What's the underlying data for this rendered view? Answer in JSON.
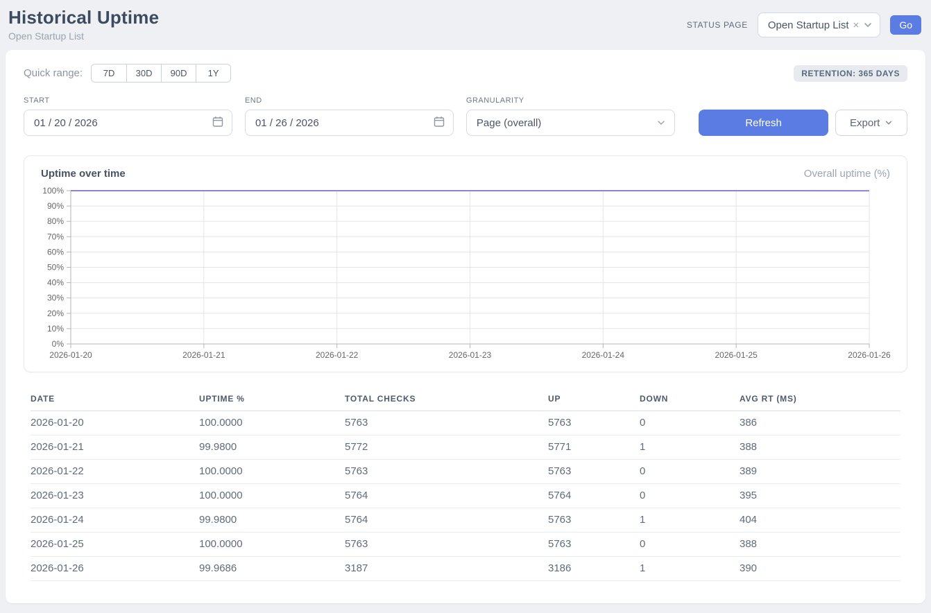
{
  "header": {
    "title": "Historical Uptime",
    "subtitle": "Open Startup List",
    "status_page_label": "STATUS PAGE",
    "status_page_value": "Open Startup List",
    "clear_icon": "×",
    "go_label": "Go"
  },
  "filters": {
    "quick_range_label": "Quick range:",
    "quick_ranges": [
      "7D",
      "30D",
      "90D",
      "1Y"
    ],
    "retention_badge": "RETENTION: 365 DAYS",
    "start_label": "START",
    "start_value": "01 / 20 / 2026",
    "end_label": "END",
    "end_value": "01 / 26 / 2026",
    "granularity_label": "GRANULARITY",
    "granularity_value": "Page (overall)",
    "refresh_label": "Refresh",
    "export_label": "Export"
  },
  "chart": {
    "title": "Uptime over time",
    "legend": "Overall uptime (%)"
  },
  "chart_data": {
    "type": "line",
    "title": "Uptime over time",
    "x": [
      "2026-01-20",
      "2026-01-21",
      "2026-01-22",
      "2026-01-23",
      "2026-01-24",
      "2026-01-25",
      "2026-01-26"
    ],
    "series": [
      {
        "name": "Overall uptime (%)",
        "values": [
          100.0,
          99.98,
          100.0,
          100.0,
          99.98,
          100.0,
          99.9686
        ]
      }
    ],
    "ylim": [
      0,
      100
    ],
    "y_tick_values": [
      0,
      10,
      20,
      30,
      40,
      50,
      60,
      70,
      80,
      90,
      100
    ],
    "y_tick_labels": [
      "0%",
      "10%",
      "20%",
      "30%",
      "40%",
      "50%",
      "60%",
      "70%",
      "80%",
      "90%",
      "100%"
    ],
    "grid": true,
    "legend_position": "top-right",
    "line_color": "#8884d8",
    "grid_color": "#e5e5e5",
    "axis_color": "#b5b5b5",
    "tick_text_color": "#666666"
  },
  "table": {
    "columns": [
      "DATE",
      "UPTIME %",
      "TOTAL CHECKS",
      "UP",
      "DOWN",
      "AVG RT (MS)"
    ],
    "rows": [
      [
        "2026-01-20",
        "100.0000",
        "5763",
        "5763",
        "0",
        "386"
      ],
      [
        "2026-01-21",
        "99.9800",
        "5772",
        "5771",
        "1",
        "388"
      ],
      [
        "2026-01-22",
        "100.0000",
        "5763",
        "5763",
        "0",
        "389"
      ],
      [
        "2026-01-23",
        "100.0000",
        "5764",
        "5764",
        "0",
        "395"
      ],
      [
        "2026-01-24",
        "99.9800",
        "5764",
        "5763",
        "1",
        "404"
      ],
      [
        "2026-01-25",
        "100.0000",
        "5763",
        "5763",
        "0",
        "388"
      ],
      [
        "2026-01-26",
        "99.9686",
        "3187",
        "3186",
        "1",
        "390"
      ]
    ]
  },
  "colors": {
    "accent_blue": "#5b7ce2",
    "chart_line": "#8884d8",
    "page_background": "#eef0f3"
  }
}
